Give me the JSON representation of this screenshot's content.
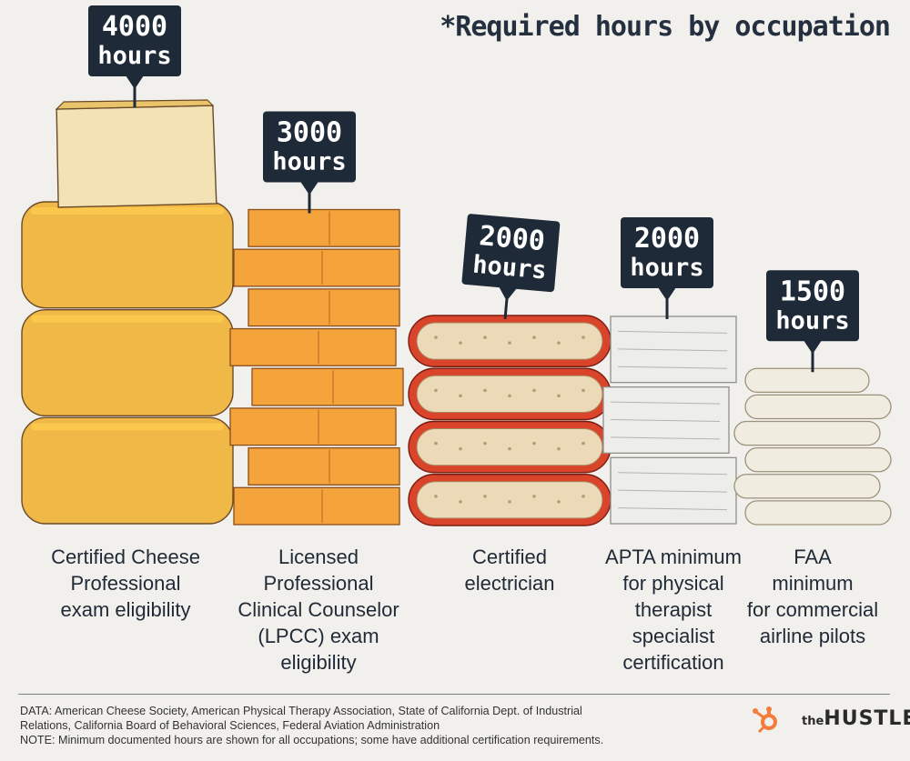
{
  "chart_data": {
    "type": "bar",
    "subtitle": "*Required hours by occupation",
    "unit": "hours",
    "categories": [
      "Certified Cheese Professional exam eligibility",
      "Licensed Professional Clinical Counselor (LPCC) exam eligibility",
      "Certified electrician",
      "APTA minimum for physical therapist specialist certification",
      "FAA minimum for commercial airline pilots"
    ],
    "label_lines": [
      [
        "Certified Cheese",
        "Professional",
        "exam eligibility"
      ],
      [
        "Licensed",
        "Professional",
        "Clinical Counselor",
        "(LPCC) exam",
        "eligibility"
      ],
      [
        "Certified",
        "electrician"
      ],
      [
        "APTA minimum",
        "for physical",
        "therapist",
        "specialist",
        "certification"
      ],
      [
        "FAA",
        "minimum",
        "for commercial",
        "airline pilots"
      ]
    ],
    "values": [
      4000,
      3000,
      2000,
      2000,
      1500
    ],
    "value_labels": [
      "4000",
      "3000",
      "2000",
      "2000",
      "1500"
    ],
    "cheese_colors": [
      "#f0b847",
      "#f5a43b",
      "#d9442b",
      "#ededea",
      "#f1ece0"
    ]
  },
  "footer": {
    "lines": [
      "DATA: American Cheese Society, American Physical Therapy Association, State of California Dept. of Industrial",
      "Relations, California Board of Behavioral Sciences, Federal Aviation Administration",
      "NOTE: Minimum documented hours are shown for all occupations; some have additional certification requirements."
    ]
  },
  "brand": {
    "the": "the",
    "name": "HUSTLE",
    "accent": "#f47c3c"
  }
}
